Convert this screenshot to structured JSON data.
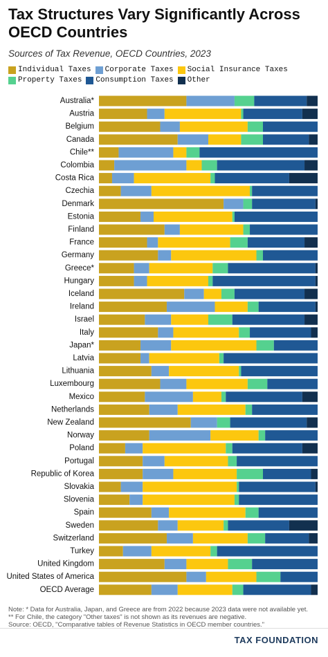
{
  "chart_data": {
    "type": "stacked_barh",
    "title": "Tax Structures Vary Significantly Across OECD Countries",
    "subtitle": "Sources of Tax Revenue, OECD Countries, 2023",
    "categories": [
      "Australia*",
      "Austria",
      "Belgium",
      "Canada",
      "Chile**",
      "Colombia",
      "Costa Rica",
      "Czechia",
      "Denmark",
      "Estonia",
      "Finland",
      "France",
      "Germany",
      "Greece*",
      "Hungary",
      "Iceland",
      "Ireland",
      "Israel",
      "Italy",
      "Japan*",
      "Latvia",
      "Lithuania",
      "Luxembourg",
      "Mexico",
      "Netherlands",
      "New Zealand",
      "Norway",
      "Poland",
      "Portugal",
      "Republic of Korea",
      "Slovakia",
      "Slovenia",
      "Spain",
      "Sweden",
      "Switzerland",
      "Turkey",
      "United Kingdom",
      "United States of America",
      "OECD Average"
    ],
    "xlim": [
      0,
      100
    ],
    "series": [
      {
        "name": "Individual Taxes",
        "color": "#c9a21f",
        "values": [
          40,
          22,
          28,
          36,
          9,
          7,
          6,
          10,
          57,
          19,
          30,
          22,
          27,
          16,
          16,
          39,
          31,
          21,
          27,
          19,
          19,
          24,
          28,
          21,
          23,
          42,
          23,
          12,
          20,
          20,
          10,
          14,
          24,
          27,
          31,
          11,
          30,
          40,
          24
        ]
      },
      {
        "name": "Corporate Taxes",
        "color": "#6e9fd3",
        "values": [
          22,
          8,
          9,
          14,
          25,
          33,
          10,
          14,
          9,
          6,
          7,
          5,
          6,
          7,
          6,
          9,
          22,
          12,
          7,
          14,
          4,
          8,
          12,
          22,
          13,
          12,
          28,
          8,
          10,
          14,
          10,
          6,
          8,
          9,
          12,
          13,
          10,
          9,
          12
        ]
      },
      {
        "name": "Social Insurance Taxes",
        "color": "#fcc70f",
        "values": [
          0,
          35,
          31,
          15,
          6,
          7,
          35,
          45,
          0,
          36,
          29,
          33,
          39,
          29,
          28,
          8,
          15,
          17,
          30,
          39,
          32,
          32,
          28,
          13,
          31,
          0,
          22,
          38,
          29,
          29,
          43,
          42,
          35,
          21,
          25,
          27,
          19,
          23,
          25
        ]
      },
      {
        "name": "Property Taxes",
        "color": "#55d18f",
        "values": [
          9,
          1,
          7,
          10,
          6,
          7,
          2,
          1,
          4,
          1,
          3,
          8,
          3,
          7,
          2,
          6,
          5,
          11,
          5,
          8,
          2,
          1,
          9,
          2,
          3,
          6,
          3,
          3,
          4,
          12,
          1,
          2,
          6,
          2,
          8,
          3,
          11,
          11,
          5
        ]
      },
      {
        "name": "Consumption Taxes",
        "color": "#1f5894",
        "values": [
          24,
          27,
          25,
          21,
          54,
          40,
          34,
          30,
          29,
          38,
          31,
          26,
          25,
          40,
          47,
          32,
          26,
          33,
          28,
          20,
          43,
          35,
          23,
          35,
          30,
          35,
          24,
          32,
          37,
          22,
          35,
          36,
          27,
          28,
          20,
          46,
          30,
          17,
          31
        ]
      },
      {
        "name": "Other",
        "color": "#12304f",
        "values": [
          5,
          7,
          0,
          4,
          0,
          6,
          13,
          0,
          1,
          0,
          0,
          6,
          0,
          1,
          1,
          6,
          1,
          6,
          3,
          0,
          0,
          0,
          0,
          7,
          0,
          5,
          0,
          7,
          0,
          3,
          1,
          0,
          0,
          13,
          4,
          0,
          0,
          0,
          3
        ]
      }
    ],
    "notes": [
      "Note: * Data for Australia, Japan, and Greece are from 2022 because 2023 data were not available yet.",
      "** For Chile, the category \"Other taxes\" is not shown as its revenues are negative.",
      "Source: OECD, \"Comparative tables of Revenue Statistics in OECD member countries.\""
    ],
    "logo": "TAX FOUNDATION"
  }
}
